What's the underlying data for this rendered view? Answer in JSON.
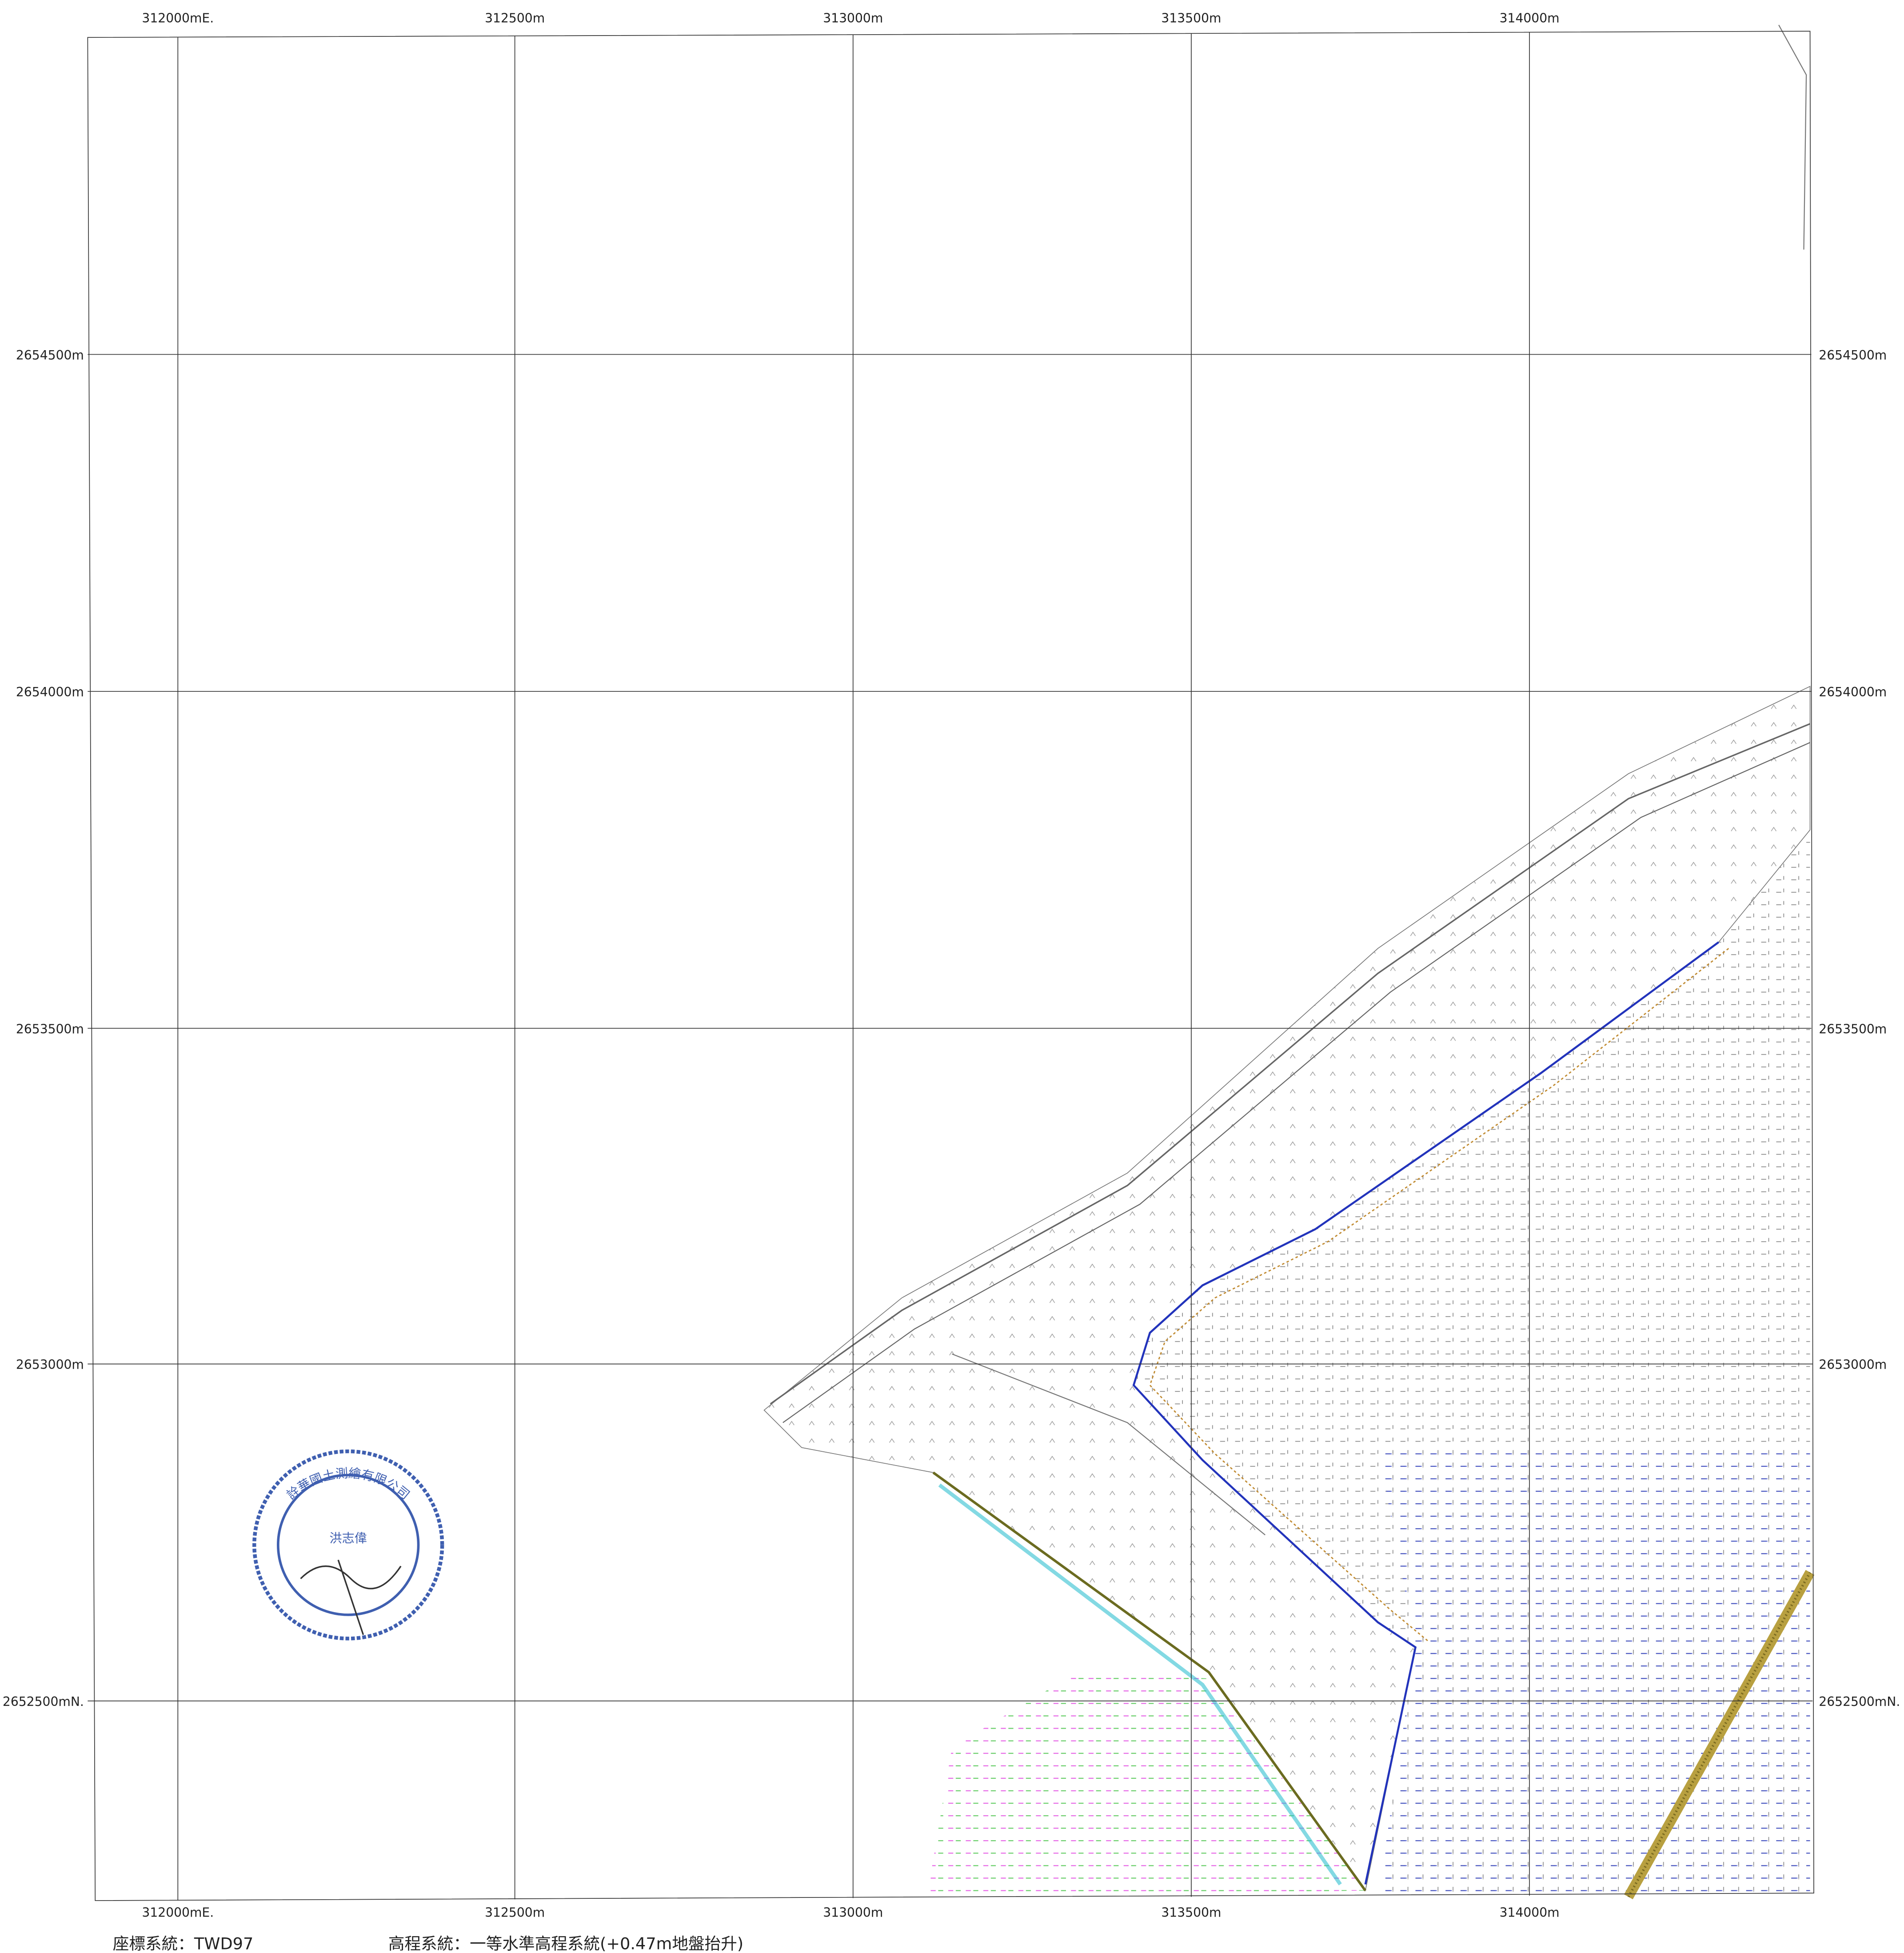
{
  "grid": {
    "x_labels_top": [
      "312000mE.",
      "312500m",
      "313000m",
      "313500m",
      "314000m"
    ],
    "x_labels_bottom": [
      "312000mE.",
      "312500m",
      "313000m",
      "313500m",
      "314000m"
    ],
    "y_labels_left": [
      "2654500m",
      "2654000m",
      "2653500m",
      "2653000m",
      "2652500mN."
    ],
    "y_labels_right": [
      "2654500m",
      "2654000m",
      "2653500m",
      "2653000m",
      "2652500mN."
    ]
  },
  "stamp": {
    "company": "詮華國土測繪有限公司",
    "name": "洪志偉"
  },
  "captions": {
    "coordinate_system": "座標系統：TWD97",
    "elevation_system": "高程系統：一等水準高程系統(+0.47m地盤抬升)"
  }
}
